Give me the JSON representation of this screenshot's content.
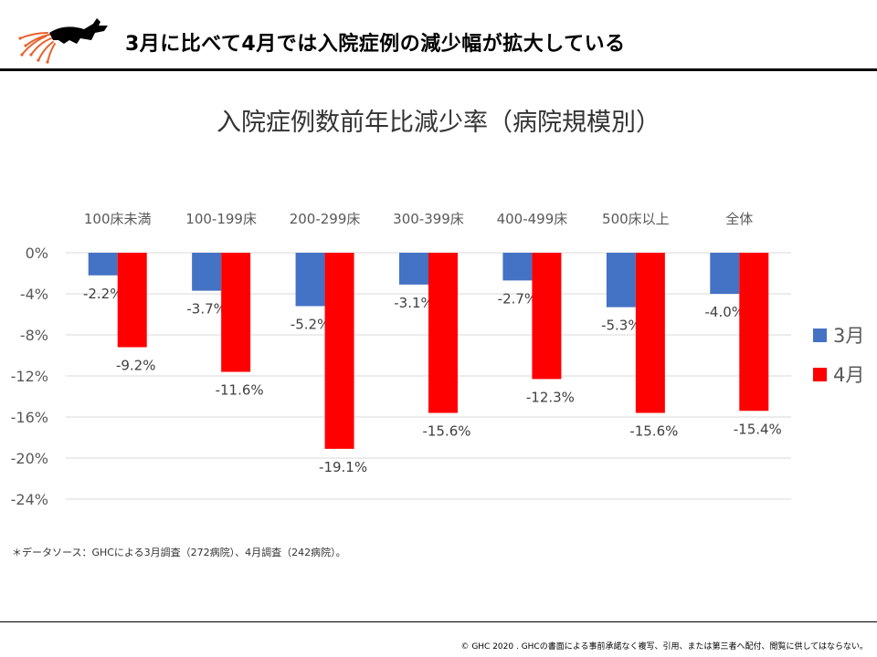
{
  "header": {
    "title": "3月に比べて4月では入院症例の減少幅が拡大している"
  },
  "colors": {
    "series_march": "#4472C4",
    "series_april": "#FF0000",
    "logo_accent": "#E8612C"
  },
  "icons": {
    "logo": "running-dog-logo"
  },
  "chart_data": {
    "type": "bar",
    "title": "入院症例数前年比減少率（病院規模別）",
    "categories": [
      "100床未満",
      "100-199床",
      "200-299床",
      "300-399床",
      "400-499床",
      "500床以上",
      "全体"
    ],
    "series": [
      {
        "name": "3月",
        "values": [
          -2.2,
          -3.7,
          -5.2,
          -3.1,
          -2.7,
          -5.3,
          -4.0
        ],
        "labels": [
          "-2.2%",
          "-3.7%",
          "-5.2%",
          "-3.1%",
          "-2.7%",
          "-5.3%",
          "-4.0%"
        ]
      },
      {
        "name": "4月",
        "values": [
          -9.2,
          -11.6,
          -19.1,
          -15.6,
          -12.3,
          -15.6,
          -15.4
        ],
        "labels": [
          "-9.2%",
          "-11.6%",
          "-19.1%",
          "-15.6%",
          "-12.3%",
          "-15.6%",
          "-15.4%"
        ]
      }
    ],
    "ylim": [
      -24,
      0
    ],
    "yticks": [
      0,
      -4,
      -8,
      -12,
      -16,
      -20,
      -24
    ],
    "ytick_labels": [
      "0%",
      "-4%",
      "-8%",
      "-12%",
      "-16%",
      "-20%",
      "-24%"
    ],
    "grid": true,
    "legend_position": "right",
    "category_labels_position": "top"
  },
  "footer": {
    "source_note": "＊データソース：GHCによる3月調査（272病院）、4月調査（242病院）。",
    "copyright": "© GHC 2020 . GHCの書面による事前承諾なく複写、引用、または第三者へ配付、閲覧に供してはならない。"
  }
}
